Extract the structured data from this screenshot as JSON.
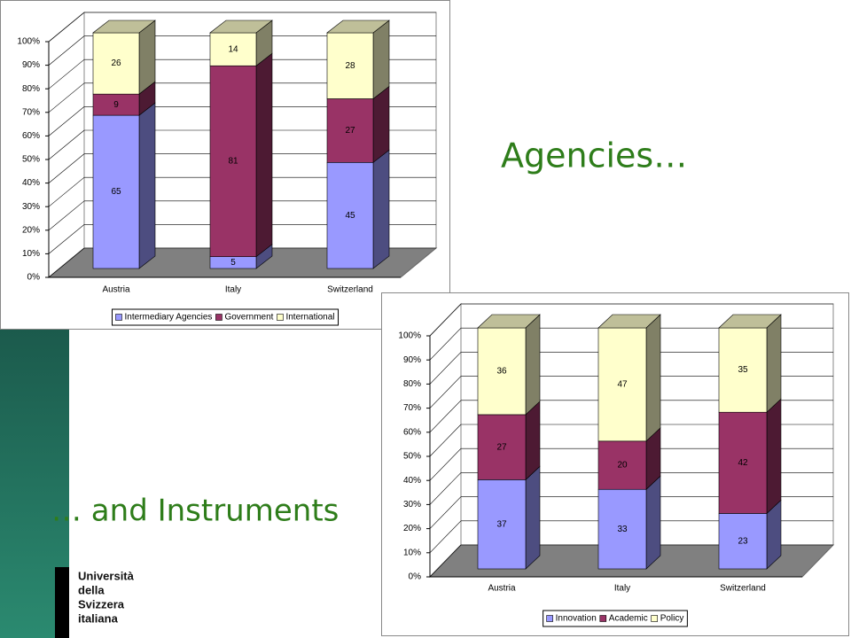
{
  "chart_data": [
    {
      "type": "bar",
      "stacked": true,
      "grid": true,
      "legend": "bottom",
      "categories": [
        "Austria",
        "Italy",
        "Switzerland"
      ],
      "series": [
        {
          "name": "Intermediary Agencies",
          "color": "#9999ff",
          "values": [
            65,
            5,
            45
          ]
        },
        {
          "name": "Government",
          "color": "#993366",
          "values": [
            9,
            81,
            27
          ]
        },
        {
          "name": "International",
          "color": "#ffffcc",
          "values": [
            26,
            14,
            28
          ]
        }
      ],
      "ylim": [
        0,
        100
      ],
      "yticks": [
        {
          "value": 0,
          "label": "0%"
        },
        {
          "value": 10,
          "label": "10%"
        },
        {
          "value": 20,
          "label": "20%"
        },
        {
          "value": 30,
          "label": "30%"
        },
        {
          "value": 40,
          "label": "40%"
        },
        {
          "value": 50,
          "label": "50%"
        },
        {
          "value": 60,
          "label": "60%"
        },
        {
          "value": 70,
          "label": "70%"
        },
        {
          "value": 80,
          "label": "80%"
        },
        {
          "value": 90,
          "label": "90%"
        },
        {
          "value": 100,
          "label": "100%"
        }
      ]
    },
    {
      "type": "bar",
      "stacked": true,
      "grid": true,
      "legend": "bottom",
      "categories": [
        "Austria",
        "Italy",
        "Switzerland"
      ],
      "series": [
        {
          "name": "Innovation",
          "color": "#9999ff",
          "values": [
            37,
            33,
            23
          ]
        },
        {
          "name": "Academic",
          "color": "#993366",
          "values": [
            27,
            20,
            42
          ]
        },
        {
          "name": "Policy",
          "color": "#ffffcc",
          "values": [
            36,
            47,
            35
          ]
        }
      ],
      "ylim": [
        0,
        100
      ],
      "yticks": [
        {
          "value": 0,
          "label": "0%"
        },
        {
          "value": 10,
          "label": "10%"
        },
        {
          "value": 20,
          "label": "20%"
        },
        {
          "value": 30,
          "label": "30%"
        },
        {
          "value": 40,
          "label": "40%"
        },
        {
          "value": 50,
          "label": "50%"
        },
        {
          "value": 60,
          "label": "60%"
        },
        {
          "value": 70,
          "label": "70%"
        },
        {
          "value": 80,
          "label": "80%"
        },
        {
          "value": 90,
          "label": "90%"
        },
        {
          "value": 100,
          "label": "100%"
        }
      ]
    }
  ],
  "slide": {
    "heading_top": "Agencies…",
    "heading_bottom": "… and Instruments",
    "logo": [
      "Università",
      "della",
      "Svizzera",
      "italiana"
    ]
  }
}
